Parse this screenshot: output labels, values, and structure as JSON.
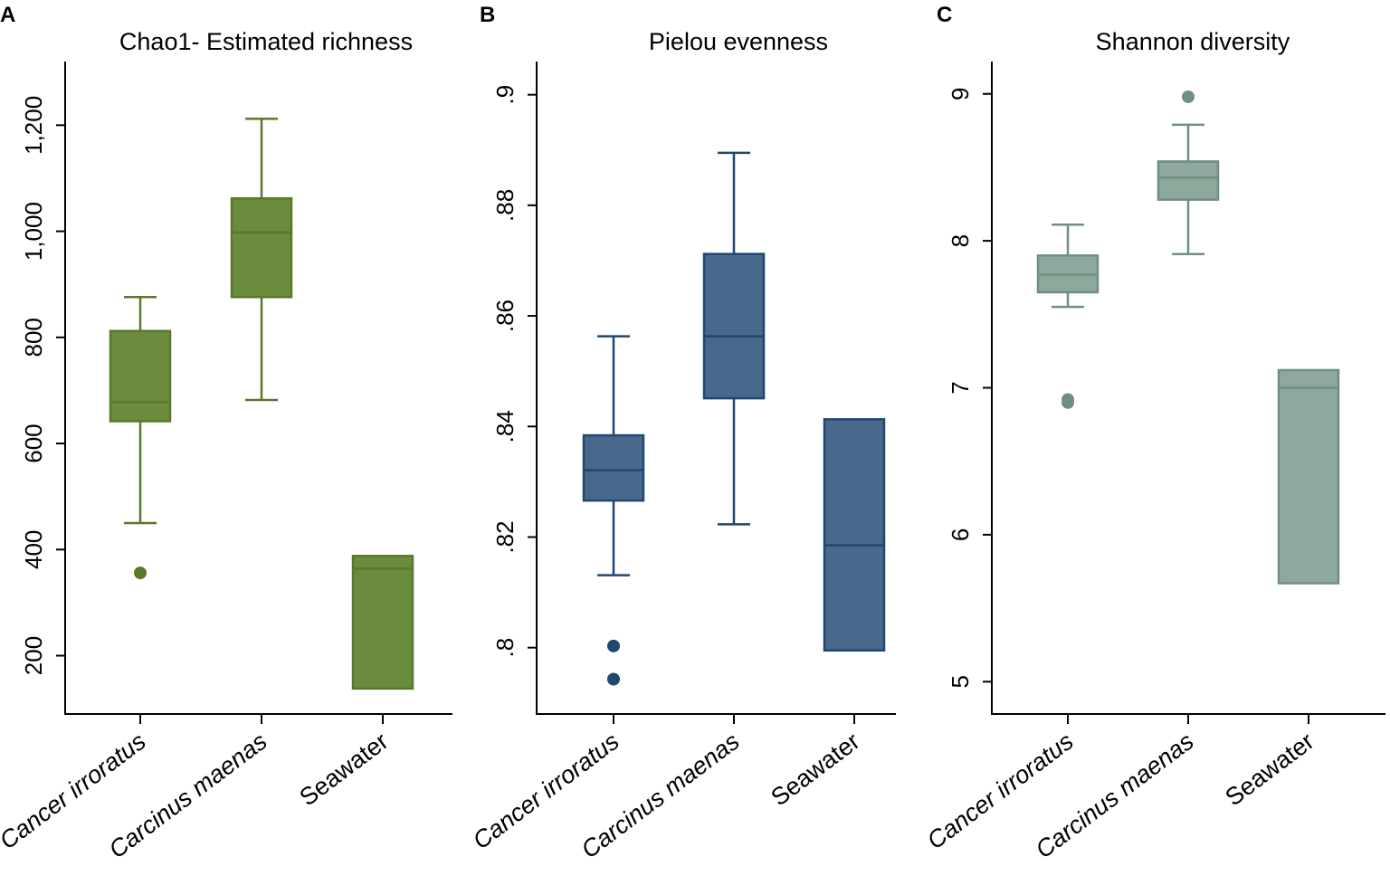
{
  "chart_data": [
    {
      "type": "boxplot",
      "panel_label": "A",
      "title": "Chao1- Estimated richness",
      "xlabel": "",
      "ylabel": "",
      "ylim": [
        90,
        1320
      ],
      "yticks": [
        200,
        400,
        600,
        800,
        1000,
        1200
      ],
      "ytick_labels": [
        "200",
        "400",
        "600",
        "800",
        "1,000",
        "1,200"
      ],
      "color": "#6a8c3c",
      "edge_color": "#58782b",
      "categories": [
        "Cancer irroratus",
        "Carcinus maenas",
        "Seawater"
      ],
      "category_italic": [
        true,
        true,
        false
      ],
      "boxes": [
        {
          "whisker_low": 450,
          "q1": 642,
          "median": 678,
          "q3": 812,
          "whisker_high": 876,
          "outliers": [
            356
          ]
        },
        {
          "whisker_low": 682,
          "q1": 876,
          "median": 998,
          "q3": 1062,
          "whisker_high": 1212,
          "outliers": []
        },
        {
          "whisker_low": 138,
          "q1": 138,
          "median": 364,
          "q3": 388,
          "whisker_high": 388,
          "outliers": []
        }
      ]
    },
    {
      "type": "boxplot",
      "panel_label": "B",
      "title": "Pielou evenness",
      "xlabel": "",
      "ylabel": "",
      "ylim": [
        0.788,
        0.906
      ],
      "yticks": [
        0.8,
        0.82,
        0.84,
        0.86,
        0.88,
        0.9
      ],
      "ytick_labels": [
        ".8",
        ".82",
        ".84",
        ".86",
        ".88",
        ".9"
      ],
      "color": "#48698c",
      "edge_color": "#1f4770",
      "categories": [
        "Cancer irroratus",
        "Carcinus maenas",
        "Seawater"
      ],
      "category_italic": [
        true,
        true,
        false
      ],
      "boxes": [
        {
          "whisker_low": 0.8131,
          "q1": 0.8266,
          "median": 0.8321,
          "q3": 0.8384,
          "whisker_high": 0.8563,
          "outliers": [
            0.8003,
            0.7943
          ]
        },
        {
          "whisker_low": 0.8223,
          "q1": 0.8451,
          "median": 0.8563,
          "q3": 0.8712,
          "whisker_high": 0.8895,
          "outliers": []
        },
        {
          "whisker_low": 0.7995,
          "q1": 0.7995,
          "median": 0.8185,
          "q3": 0.8413,
          "whisker_high": 0.8413,
          "outliers": []
        }
      ]
    },
    {
      "type": "boxplot",
      "panel_label": "C",
      "title": "Shannon diversity",
      "xlabel": "",
      "ylabel": "",
      "ylim": [
        4.78,
        9.22
      ],
      "yticks": [
        5,
        6,
        7,
        8,
        9
      ],
      "ytick_labels": [
        "5",
        "6",
        "7",
        "8",
        "9"
      ],
      "color": "#8da89c",
      "edge_color": "#6f8f81",
      "categories": [
        "Cancer irroratus",
        "Carcinus maenas",
        "Seawater"
      ],
      "category_italic": [
        true,
        true,
        false
      ],
      "boxes": [
        {
          "whisker_low": 7.55,
          "q1": 7.65,
          "median": 7.77,
          "q3": 7.9,
          "whisker_high": 8.11,
          "outliers": [
            6.9,
            6.92
          ]
        },
        {
          "whisker_low": 7.91,
          "q1": 8.28,
          "median": 8.43,
          "q3": 8.54,
          "whisker_high": 8.79,
          "outliers": [
            8.98
          ]
        },
        {
          "whisker_low": 5.67,
          "q1": 5.67,
          "median": 7.0,
          "q3": 7.12,
          "whisker_high": 7.12,
          "outliers": []
        }
      ]
    }
  ]
}
